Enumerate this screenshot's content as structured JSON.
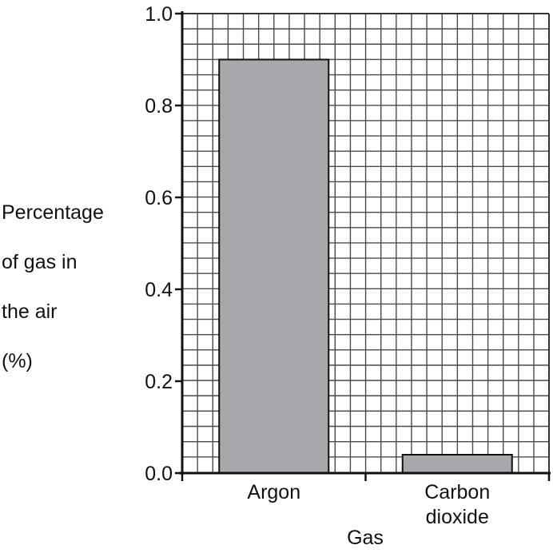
{
  "chart_data": {
    "type": "bar",
    "title": "",
    "xlabel": "Gas",
    "ylabel_lines": [
      "Percentage",
      "of gas in",
      "the air",
      "(%)"
    ],
    "categories": [
      {
        "lines": [
          "Argon"
        ]
      },
      {
        "lines": [
          "Carbon",
          "dioxide"
        ]
      }
    ],
    "values": [
      0.9,
      0.04
    ],
    "ylim": [
      0.0,
      1.0
    ],
    "y_ticks": [
      "0.0",
      "0.2",
      "0.4",
      "0.6",
      "0.8",
      "1.0"
    ],
    "grid": true,
    "bar_color": "#a7a8ab"
  }
}
